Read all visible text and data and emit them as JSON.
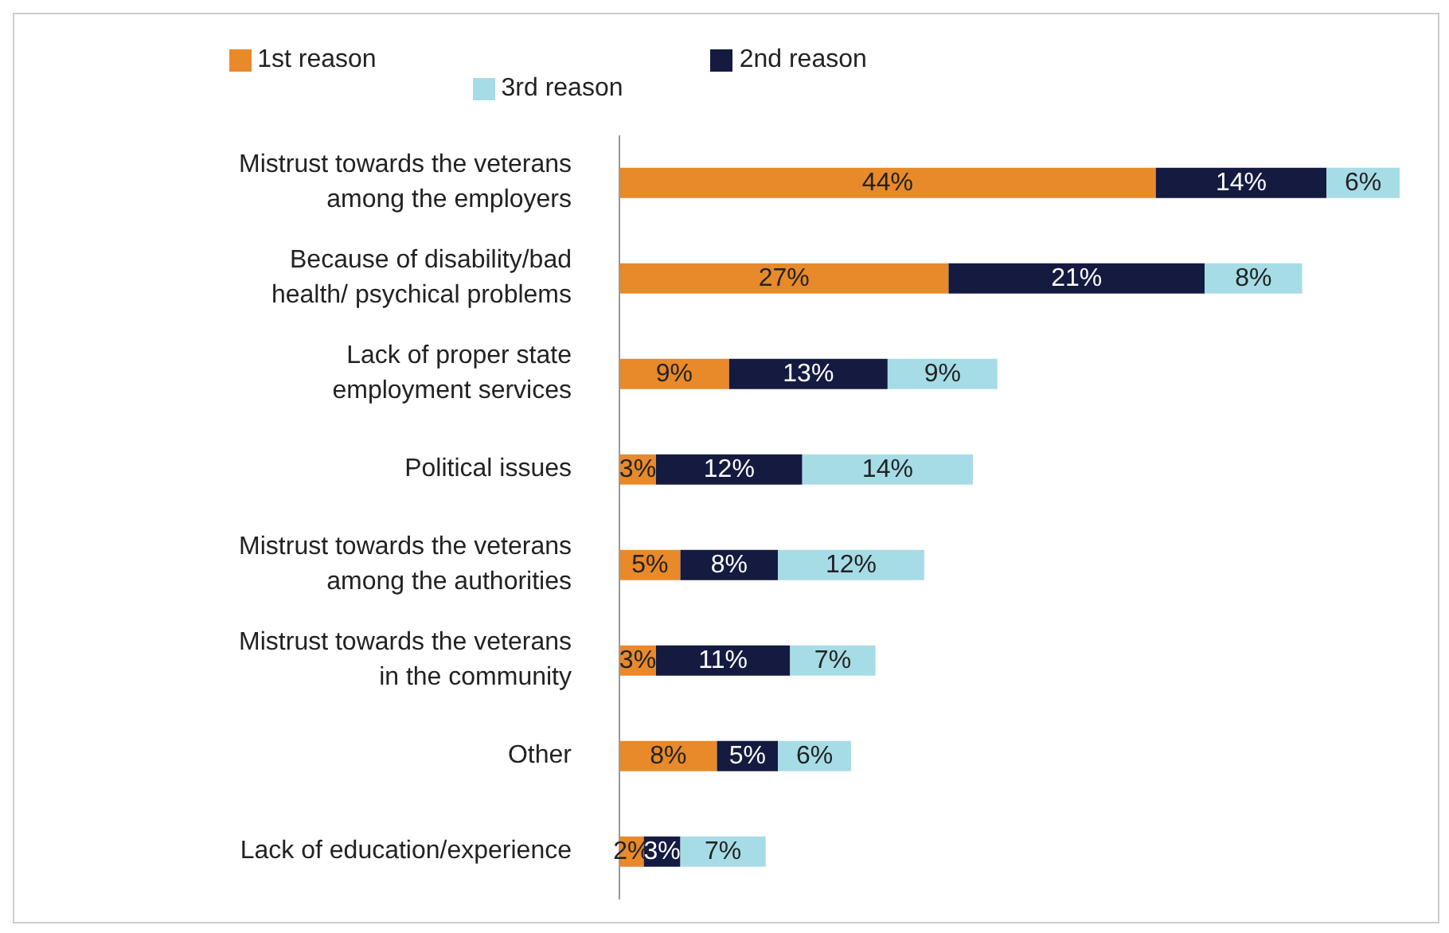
{
  "chart_data": {
    "type": "bar",
    "orientation": "horizontal",
    "stacked": true,
    "legend": "top",
    "grid": false,
    "categories": [
      "Mistrust towards the veterans among the employers",
      "Because of disability/bad health/ psychical problems",
      "Lack of proper state employment services",
      "Political issues",
      "Mistrust towards the veterans among the authorities",
      "Mistrust towards the veterans in the community",
      "Other",
      "Lack of education/experience"
    ],
    "series": [
      {
        "name": "1st reason",
        "color": "#e8892a",
        "values": [
          44,
          27,
          9,
          3,
          5,
          3,
          8,
          2
        ],
        "value_labels": [
          "44%",
          "27%",
          "9%",
          "3%",
          "5%",
          "3%",
          "8%",
          "2%"
        ]
      },
      {
        "name": "2nd reason",
        "color": "#141a40",
        "values": [
          14,
          21,
          13,
          12,
          8,
          11,
          5,
          3
        ],
        "value_labels": [
          "14%",
          "21%",
          "13%",
          "12%",
          "8%",
          "11%",
          "5%",
          "3%"
        ]
      },
      {
        "name": "3rd reason",
        "color": "#a6dce6",
        "values": [
          6,
          8,
          9,
          14,
          12,
          7,
          6,
          7
        ],
        "value_labels": [
          "6%",
          "8%",
          "9%",
          "14%",
          "12%",
          "7%",
          "6%",
          "7%"
        ]
      }
    ]
  }
}
